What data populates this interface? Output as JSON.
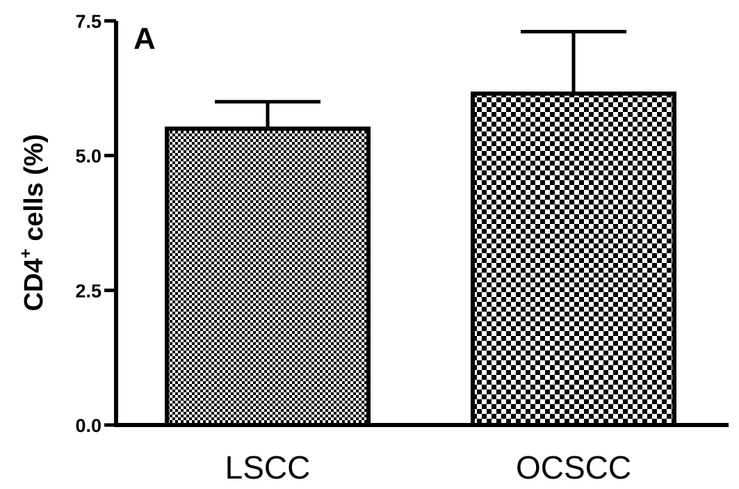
{
  "chart_data": {
    "type": "bar",
    "panel_label": "A",
    "ylabel": "CD4",
    "ylabel_sup": "+",
    "ylabel_suffix": " cells (%)",
    "categories": [
      "LSCC",
      "OCSCC"
    ],
    "values": [
      5.5,
      6.15
    ],
    "error_upper": [
      6.0,
      7.3
    ],
    "ylim": [
      0,
      7.5
    ],
    "yticks": [
      0.0,
      2.5,
      5.0,
      7.5
    ],
    "ytick_labels": [
      "0.0",
      "2.5",
      "5.0",
      "7.5"
    ],
    "fill_patterns": [
      "fine-checkerboard",
      "coarse-checkerboard"
    ],
    "colors": {
      "ink": "#000000",
      "background": "#ffffff"
    }
  }
}
